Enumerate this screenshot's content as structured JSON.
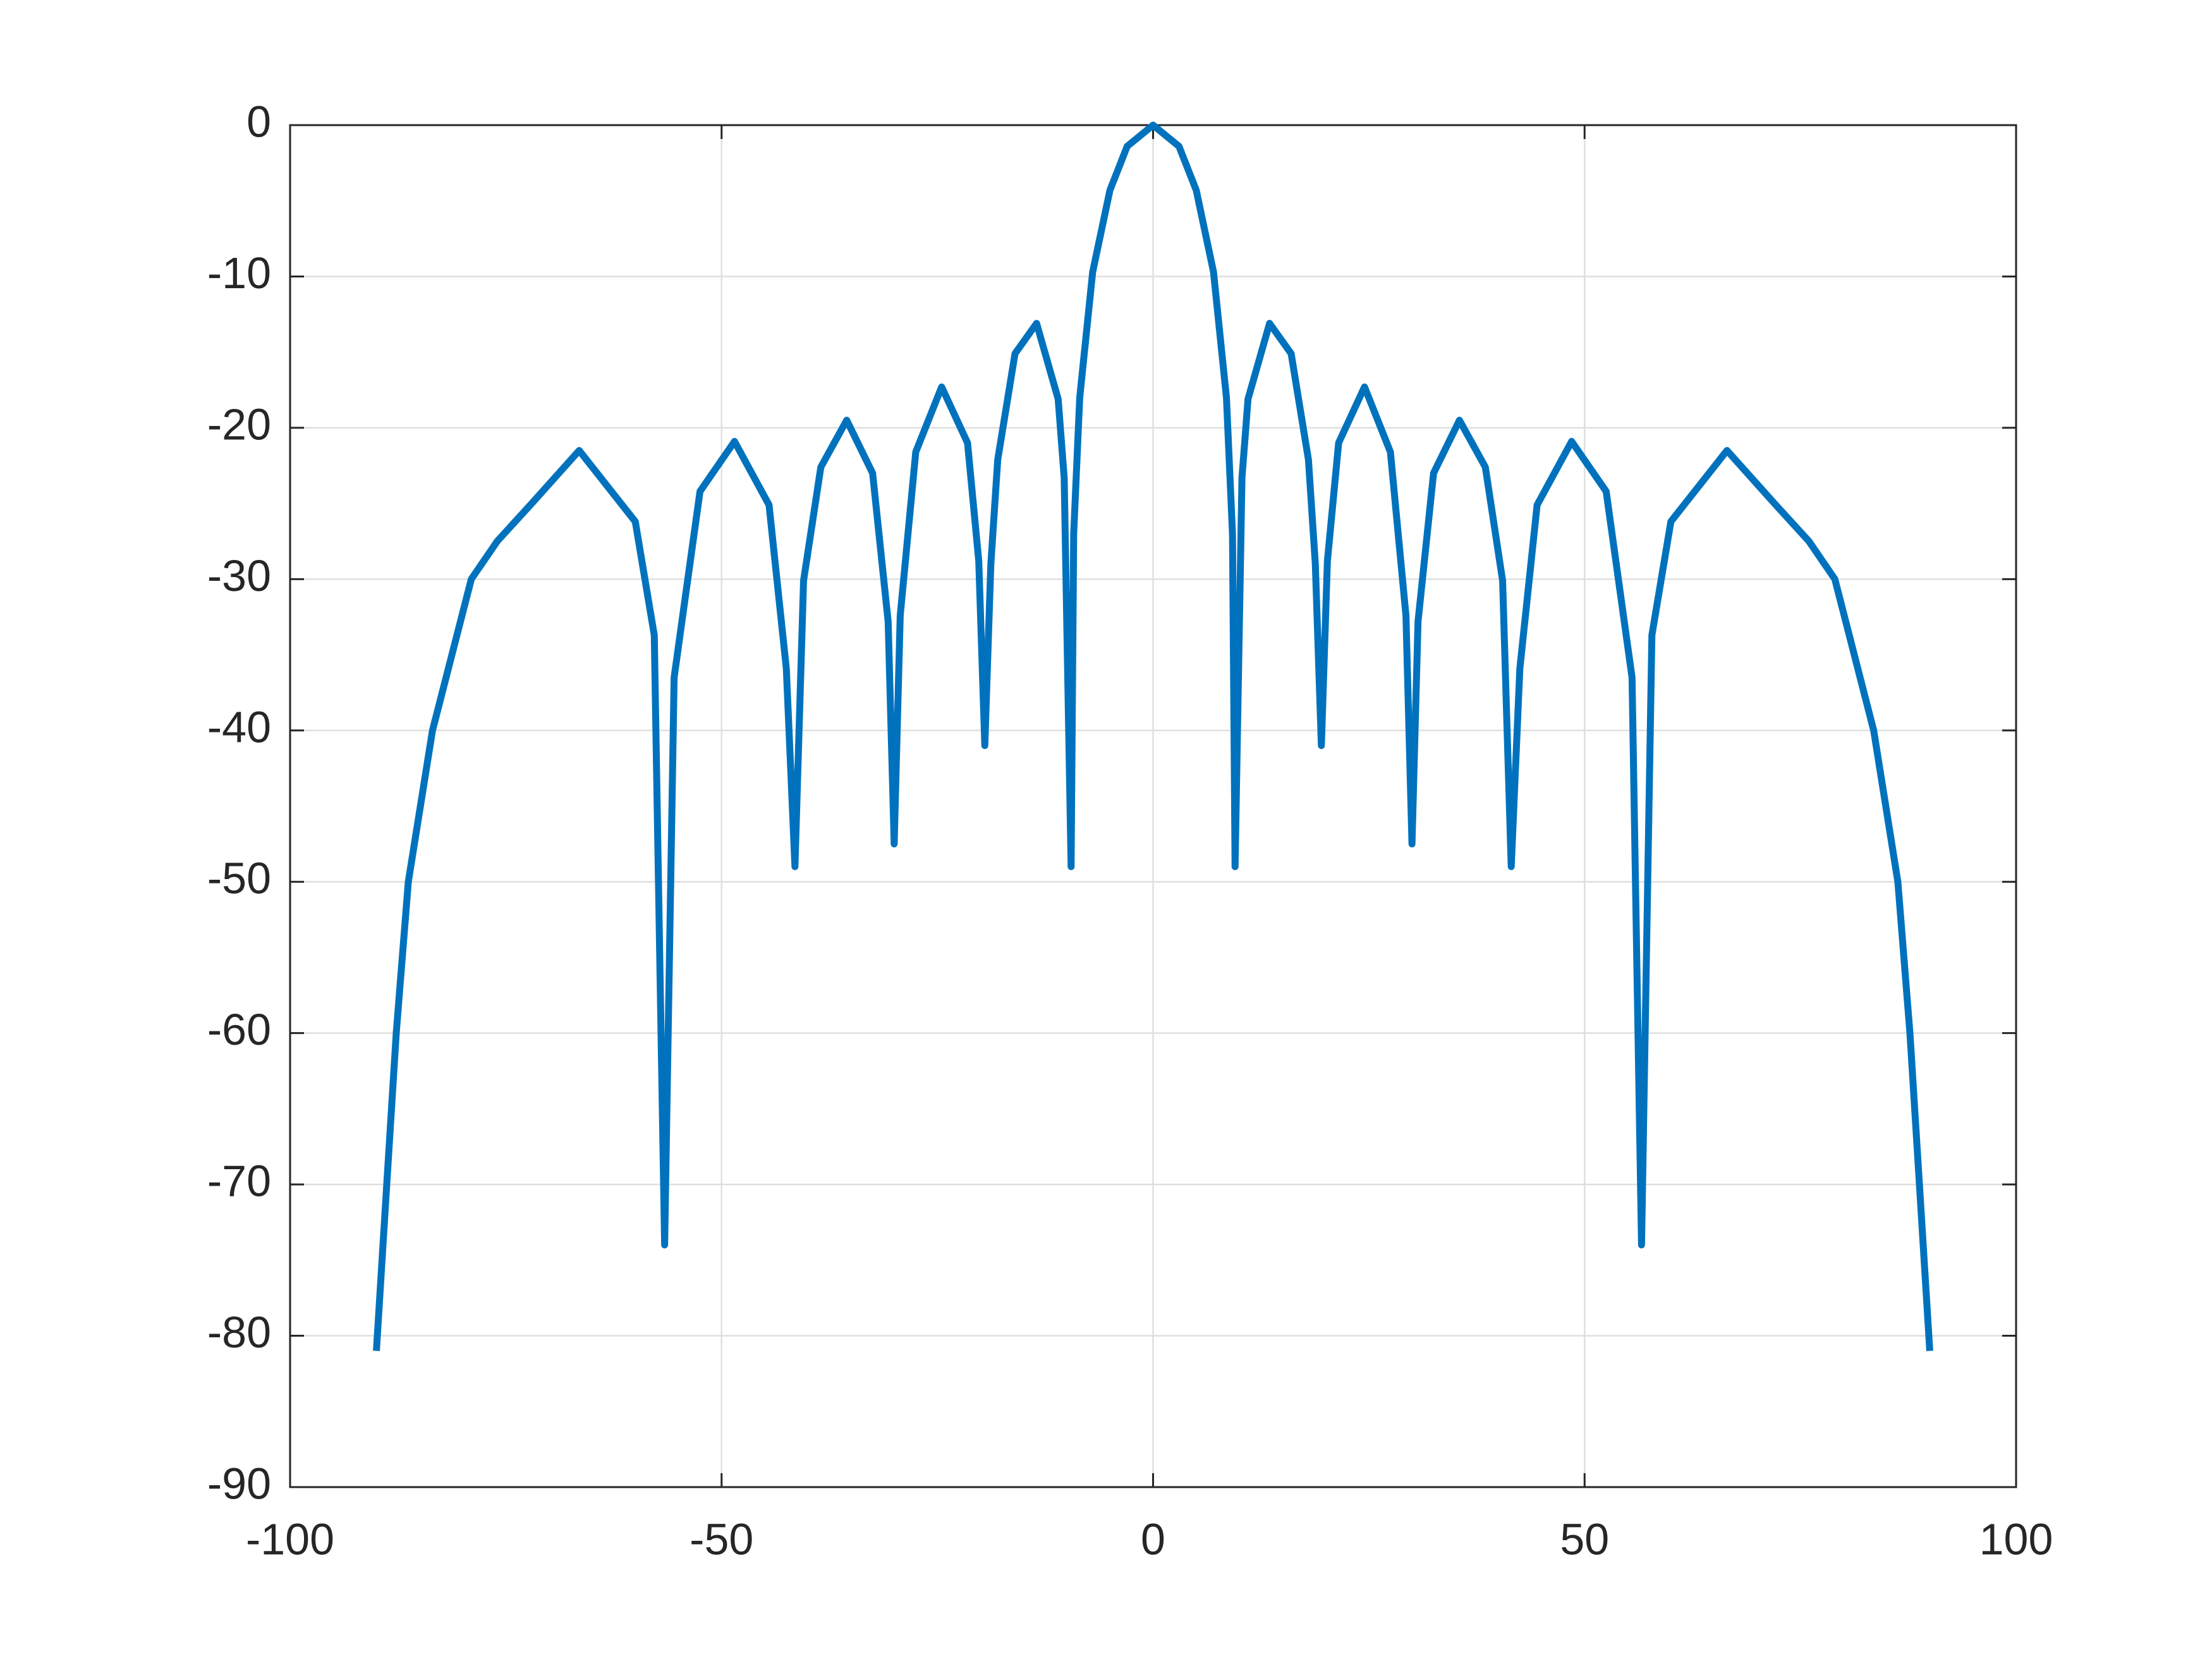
{
  "chart_data": {
    "type": "line",
    "color": "#0072bd",
    "grid": true,
    "x": [
      -90,
      -88.8,
      -87.7,
      -86.3,
      -83.5,
      -79,
      -76,
      -72,
      -66.5,
      -60,
      -57.8,
      -56.6,
      -55.5,
      -52.5,
      -48.5,
      -44.5,
      -42.5,
      -41.5,
      -40.5,
      -38.5,
      -35.5,
      -32.5,
      -30.7,
      -30,
      -29.3,
      -27.5,
      -24.5,
      -21.5,
      -20.2,
      -19.5,
      -18.8,
      -18,
      -16,
      -13.5,
      -11,
      -10.3,
      -9.5,
      -9.2,
      -8.5,
      -7,
      -5,
      -3,
      0,
      3,
      5,
      7,
      8.5,
      9.2,
      9.5,
      10.3,
      11,
      13.5,
      16,
      18,
      18.8,
      19.5,
      20.2,
      21.5,
      24.5,
      27.5,
      29.3,
      30,
      30.7,
      32.5,
      35.5,
      38.5,
      40.5,
      41.5,
      42.5,
      44.5,
      48.5,
      52.5,
      55.5,
      56.6,
      57.8,
      60,
      66.5,
      72,
      76,
      79,
      83.5,
      86.3,
      87.7,
      88.8,
      90
    ],
    "values": [
      -81,
      -70,
      -60,
      -50,
      -40,
      -30,
      -27.5,
      -25,
      -21.5,
      -26.2,
      -33.7,
      -74,
      -36.5,
      -24.2,
      -20.9,
      -25.1,
      -35.9,
      -49,
      -30.1,
      -22.6,
      -19.5,
      -23,
      -32.8,
      -47.5,
      -32.4,
      -21.6,
      -17.3,
      -21,
      -28.8,
      -41,
      -29,
      -22.1,
      -15.1,
      -13.1,
      -18.1,
      -23.3,
      -49,
      -27,
      -18,
      -9.7,
      -4.3,
      -1.4,
      0,
      -1.4,
      -4.3,
      -9.7,
      -18,
      -27,
      -49,
      -23.3,
      -18.1,
      -13.1,
      -15.1,
      -22.1,
      -29,
      -41,
      -28.8,
      -21,
      -17.3,
      -21.6,
      -32.4,
      -47.5,
      -32.8,
      -23,
      -19.5,
      -22.6,
      -30.1,
      -49,
      -35.9,
      -25.1,
      -20.9,
      -24.2,
      -36.5,
      -74,
      -33.7,
      -26.2,
      -21.5,
      -25,
      -27.5,
      -30,
      -40,
      -50,
      -60,
      -70,
      -81
    ],
    "xlim": [
      -100,
      100
    ],
    "xticks": [
      -100,
      -50,
      0,
      50,
      100
    ],
    "ylim": [
      -90,
      0
    ],
    "yticks": [
      -90,
      -80,
      -70,
      -60,
      -50,
      -40,
      -30,
      -20,
      -10,
      0
    ]
  }
}
